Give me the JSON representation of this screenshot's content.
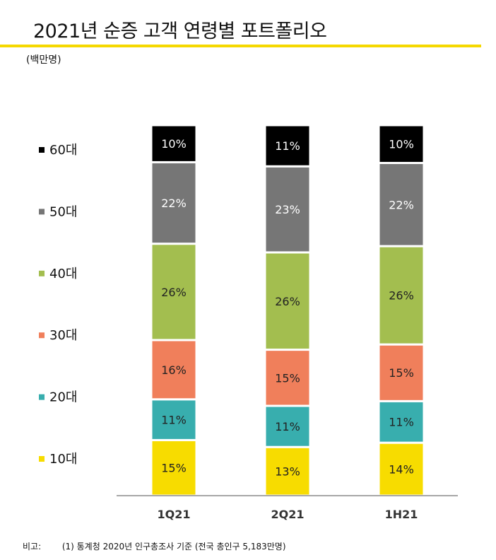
{
  "header": {
    "title": "2021년 순증 고객 연령별 포트폴리오",
    "unit": "(백만명)"
  },
  "footnote": {
    "label": "비고:",
    "text": "(1) 통계청 2020년 인구총조사 기준 (전국 총인구 5,183만명)"
  },
  "colors": {
    "accent": "#f5d800",
    "60대": "#000000",
    "50대": "#767676",
    "40대": "#a3be4f",
    "30대": "#f07f5b",
    "20대": "#38aeae",
    "10대": "#f7dc00"
  },
  "chart_data": {
    "type": "bar",
    "stacked": true,
    "normalized_percent": true,
    "categories": [
      "1Q21",
      "2Q21",
      "1H21"
    ],
    "series": [
      {
        "name": "10대",
        "values": [
          15,
          13,
          14
        ],
        "labels": [
          "15%",
          "13%",
          "14%"
        ],
        "color": "#f7dc00",
        "label_color": "#222222"
      },
      {
        "name": "20대",
        "values": [
          11,
          11,
          11
        ],
        "labels": [
          "11%",
          "11%",
          "11%"
        ],
        "color": "#38aeae",
        "label_color": "#222222"
      },
      {
        "name": "30대",
        "values": [
          16,
          15,
          15
        ],
        "labels": [
          "16%",
          "15%",
          "15%"
        ],
        "color": "#f07f5b",
        "label_color": "#222222"
      },
      {
        "name": "40대",
        "values": [
          26,
          26,
          26
        ],
        "labels": [
          "26%",
          "26%",
          "26%"
        ],
        "color": "#a3be4f",
        "label_color": "#222222"
      },
      {
        "name": "50대",
        "values": [
          22,
          23,
          22
        ],
        "labels": [
          "22%",
          "23%",
          "22%"
        ],
        "color": "#767676",
        "label_color": "#ffffff"
      },
      {
        "name": "60대",
        "values": [
          10,
          11,
          10
        ],
        "labels": [
          "10%",
          "11%",
          "10%"
        ],
        "color": "#000000",
        "label_color": "#ffffff"
      }
    ],
    "legend": {
      "entries": [
        "60대",
        "50대",
        "40대",
        "30대",
        "20대",
        "10대"
      ],
      "placement": "left"
    },
    "grid": false
  }
}
